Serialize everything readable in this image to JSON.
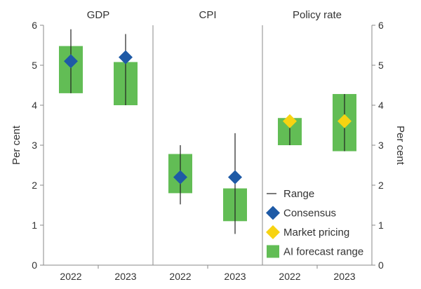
{
  "chart_data": {
    "type": "range",
    "ylim": [
      0,
      6
    ],
    "yticks": [
      0,
      1,
      2,
      3,
      4,
      5,
      6
    ],
    "ylabel_left": "Per cent",
    "ylabel_right": "Per cent",
    "panels": [
      {
        "title": "GDP",
        "categories": [
          "2022",
          "2023"
        ],
        "range": [
          [
            4.3,
            5.9
          ],
          [
            4.0,
            5.78
          ]
        ],
        "ai_forecast_range": [
          [
            4.3,
            5.48
          ],
          [
            4.0,
            5.08
          ]
        ],
        "point_series": "Consensus",
        "points": [
          5.1,
          5.2
        ]
      },
      {
        "title": "CPI",
        "categories": [
          "2022",
          "2023"
        ],
        "range": [
          [
            1.52,
            3.0
          ],
          [
            0.78,
            3.3
          ]
        ],
        "ai_forecast_range": [
          [
            1.8,
            2.78
          ],
          [
            1.1,
            1.92
          ]
        ],
        "point_series": "Consensus",
        "points": [
          2.2,
          2.2
        ]
      },
      {
        "title": "Policy rate",
        "categories": [
          "2022",
          "2023"
        ],
        "range": [
          [
            3.0,
            3.68
          ],
          [
            2.85,
            4.28
          ]
        ],
        "ai_forecast_range": [
          [
            3.0,
            3.68
          ],
          [
            2.85,
            4.28
          ]
        ],
        "point_series": "Market pricing",
        "points": [
          3.6,
          3.6
        ]
      }
    ],
    "legend": [
      {
        "label": "Range",
        "kind": "line"
      },
      {
        "label": "Consensus",
        "kind": "diamond"
      },
      {
        "label": "Market pricing",
        "kind": "diamond"
      },
      {
        "label": "AI forecast range",
        "kind": "box"
      }
    ],
    "legend_placement": "bottom-right",
    "colors": {
      "ai_forecast_range": "#62bd55",
      "consensus": "#1e5aa6",
      "market_pricing": "#f7d312",
      "range": "#222222",
      "axis": "#8a8a8a",
      "text": "#333333"
    }
  }
}
